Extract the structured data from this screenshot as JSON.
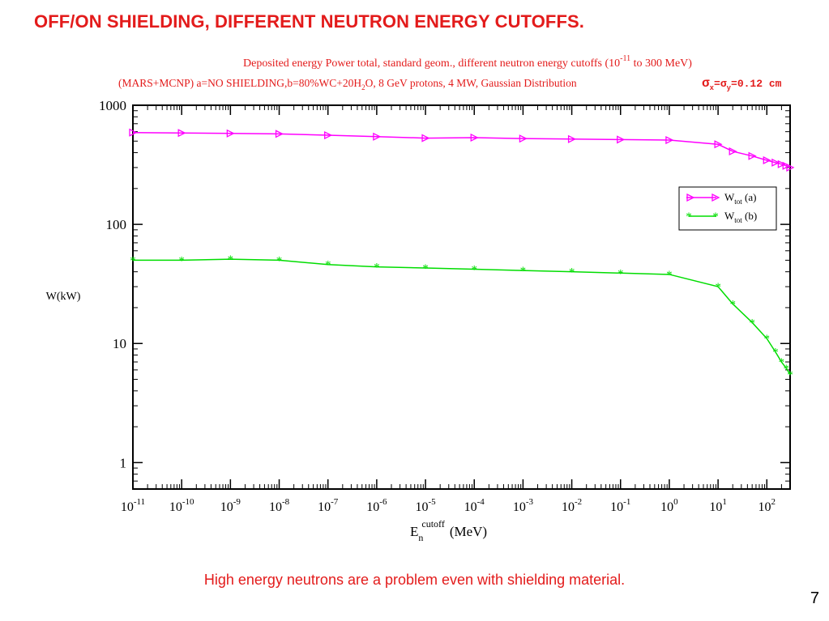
{
  "slide": {
    "title": "OFF/ON SHIELDING, DIFFERENT NEUTRON ENERGY CUTOFFS.",
    "caption": "High energy neutrons are a problem even with shielding material.",
    "page_number": "7"
  },
  "colors": {
    "title_red": "#e31b1b",
    "chart_text_red": "#e31b1b",
    "series_a": "#ff00ff",
    "series_b": "#00dd00",
    "axis": "#000000"
  },
  "chart_data": {
    "type": "line",
    "title_line1": {
      "pre": "Deposited energy Power  total, standard geom., different neutron energy cutoffs (10",
      "sup": "-11",
      "post": " to 300 MeV)"
    },
    "title_line2": {
      "pre": "(MARS+MCNP)  a=NO SHIELDING,b=80%WC+20H",
      "sub": "2",
      "post": "O,  8 GeV protons, 4 MW, Gaussian Distribution",
      "sigma_expr": "=σ",
      "sigma_val": "=0.12 cm",
      "sigma_sub_x": "x",
      "sigma_sub_y": "y",
      "sigma_symbol": "σ"
    },
    "xlabel": {
      "base": "E",
      "sub": "n",
      "sup": "cutoff",
      "unit": "(MeV)"
    },
    "ylabel": "W(kW)",
    "xscale": "log",
    "yscale": "log",
    "xlim": [
      1e-11,
      300
    ],
    "ylim": [
      0.6,
      1000
    ],
    "x_ticks": [
      {
        "value": 1e-11,
        "exp": "-11"
      },
      {
        "value": 1e-10,
        "exp": "-10"
      },
      {
        "value": 1e-09,
        "exp": "-9"
      },
      {
        "value": 1e-08,
        "exp": "-8"
      },
      {
        "value": 1e-07,
        "exp": "-7"
      },
      {
        "value": 1e-06,
        "exp": "-6"
      },
      {
        "value": 1e-05,
        "exp": "-5"
      },
      {
        "value": 0.0001,
        "exp": "-4"
      },
      {
        "value": 0.001,
        "exp": "-3"
      },
      {
        "value": 0.01,
        "exp": "-2"
      },
      {
        "value": 0.1,
        "exp": "-1"
      },
      {
        "value": 1,
        "exp": "0"
      },
      {
        "value": 10,
        "exp": "1"
      },
      {
        "value": 100,
        "exp": "2"
      }
    ],
    "y_ticks": [
      {
        "value": 1,
        "label": "1"
      },
      {
        "value": 10,
        "label": "10"
      },
      {
        "value": 100,
        "label": "100"
      },
      {
        "value": 1000,
        "label": "1000"
      }
    ],
    "grid": false,
    "legend_position": "right, upper-middle",
    "series": [
      {
        "name": "W",
        "name_sub": "tot",
        "name_suffix": " (a)",
        "marker": "triangle-right",
        "color": "#ff00ff",
        "x": [
          1e-11,
          1e-10,
          1e-09,
          1e-08,
          1e-07,
          1e-06,
          1e-05,
          0.0001,
          0.001,
          0.01,
          0.1,
          1,
          10,
          20,
          50,
          100,
          150,
          200,
          250,
          300
        ],
        "y": [
          590,
          585,
          580,
          575,
          560,
          545,
          530,
          535,
          525,
          520,
          515,
          510,
          470,
          410,
          375,
          345,
          330,
          320,
          310,
          300
        ]
      },
      {
        "name": "W",
        "name_sub": "tot",
        "name_suffix": " (b)",
        "marker": "asterisk",
        "color": "#00dd00",
        "x": [
          1e-11,
          1e-10,
          1e-09,
          1e-08,
          1e-07,
          1e-06,
          1e-05,
          0.0001,
          0.001,
          0.01,
          0.1,
          1,
          10,
          20,
          50,
          100,
          150,
          200,
          250,
          300
        ],
        "y": [
          50,
          50,
          51,
          50,
          46,
          44,
          43,
          42,
          41,
          40,
          39,
          38,
          30,
          21.5,
          15,
          11,
          8.5,
          7,
          6.2,
          5.5
        ]
      }
    ]
  }
}
